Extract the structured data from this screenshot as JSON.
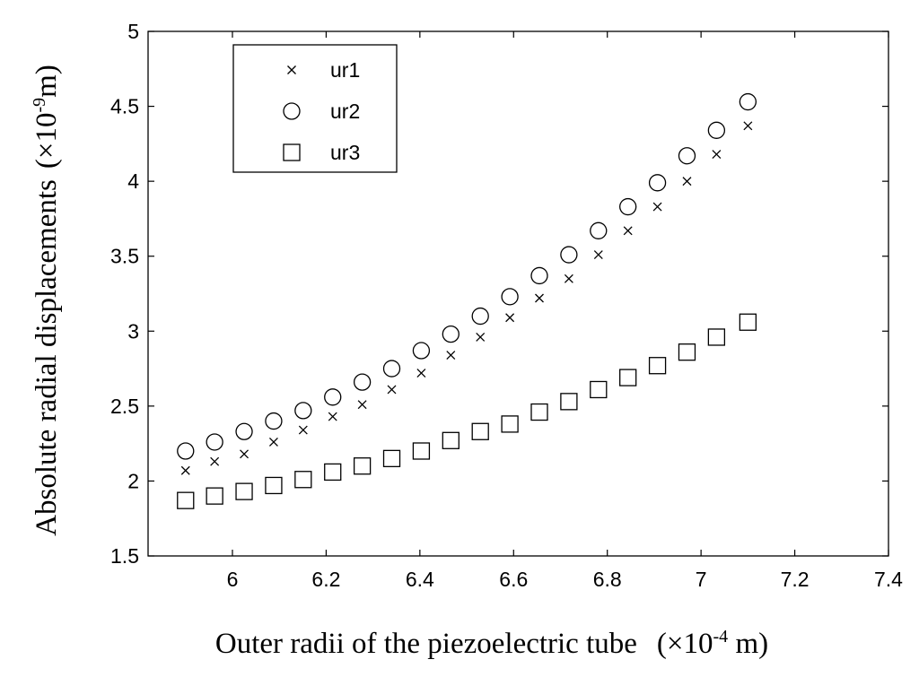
{
  "chart_data": {
    "type": "scatter",
    "title": "",
    "xlabel": "Outer radii of the piezoelectric tube",
    "xlabel_unit_prefix": "(×10",
    "xlabel_unit_exp": "-4",
    "xlabel_unit_suffix": " m)",
    "ylabel": "Absolute radial displacements",
    "ylabel_unit_prefix": "(×10",
    "ylabel_unit_exp": "-9",
    "ylabel_unit_suffix": "m)",
    "xlim": [
      5.82,
      7.4
    ],
    "ylim": [
      1.5,
      5
    ],
    "xticks": [
      6,
      6.2,
      6.4,
      6.6,
      6.8,
      7,
      7.2,
      7.4
    ],
    "xtick_labels": [
      "6",
      "6.2",
      "6.4",
      "6.6",
      "6.8",
      "7",
      "7.2",
      "7.4"
    ],
    "yticks": [
      1.5,
      2,
      2.5,
      3,
      3.5,
      4,
      4.5,
      5
    ],
    "ytick_labels": [
      "1.5",
      "2",
      "2.5",
      "3",
      "3.5",
      "4",
      "4.5",
      "5"
    ],
    "grid": false,
    "legend_position": "top-left",
    "x": [
      5.9,
      5.962,
      6.025,
      6.088,
      6.151,
      6.214,
      6.277,
      6.34,
      6.403,
      6.466,
      6.529,
      6.592,
      6.655,
      6.718,
      6.781,
      6.844,
      6.907,
      6.97,
      7.033,
      7.1
    ],
    "series": [
      {
        "name": "ur1",
        "marker": "x-mark",
        "values": [
          2.07,
          2.13,
          2.18,
          2.26,
          2.34,
          2.43,
          2.51,
          2.61,
          2.72,
          2.84,
          2.96,
          3.09,
          3.22,
          3.35,
          3.51,
          3.67,
          3.83,
          4.0,
          4.18,
          4.37
        ]
      },
      {
        "name": "ur2",
        "marker": "circle",
        "values": [
          2.2,
          2.26,
          2.33,
          2.4,
          2.47,
          2.56,
          2.66,
          2.75,
          2.87,
          2.98,
          3.1,
          3.23,
          3.37,
          3.51,
          3.67,
          3.83,
          3.99,
          4.17,
          4.34,
          4.53
        ]
      },
      {
        "name": "ur3",
        "marker": "square",
        "values": [
          1.87,
          1.9,
          1.93,
          1.97,
          2.01,
          2.06,
          2.1,
          2.15,
          2.2,
          2.27,
          2.33,
          2.38,
          2.46,
          2.53,
          2.61,
          2.69,
          2.77,
          2.86,
          2.96,
          3.06
        ]
      }
    ]
  }
}
